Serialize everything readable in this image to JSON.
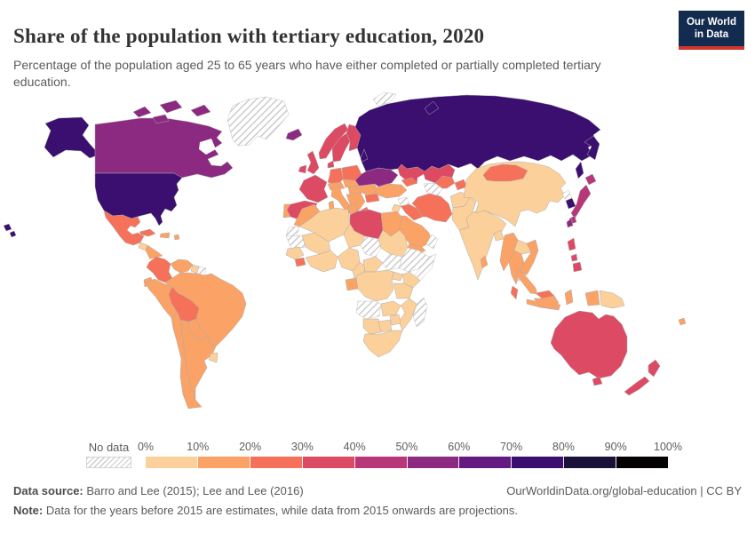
{
  "page": {
    "title": "Share of the population with tertiary education, 2020",
    "subtitle": "Percentage of the population aged 25 to 65 years who have either completed or partially completed tertiary education."
  },
  "logo": {
    "line1": "Our World",
    "line2": "in Data",
    "bg_color": "#122B4E",
    "accent_color": "#D0342C"
  },
  "legend": {
    "no_data_label": "No data",
    "tick_labels": [
      "0%",
      "10%",
      "20%",
      "30%",
      "40%",
      "50%",
      "60%",
      "70%",
      "80%",
      "90%",
      "100%"
    ]
  },
  "footer": {
    "source_label": "Data source:",
    "source_value": " Barro and Lee (2015); Lee and Lee (2016)",
    "attribution": "OurWorldinData.org/global-education | CC BY",
    "note_label": "Note:",
    "note_value": " Data for the years before 2015 are estimates, while data from 2015 onwards are projections."
  },
  "chart_data": {
    "type": "heatmap",
    "subtype": "world-choropleth",
    "title": "Share of the population with tertiary education",
    "year": "2020",
    "unit": "% of population aged 25 to 65",
    "legend_position": "bottom",
    "legend_bins": [
      "0-10%",
      "10-20%",
      "20-30%",
      "30-40%",
      "40-50%",
      "50-60%",
      "60-70%",
      "70-80%",
      "80-90%",
      "90-100%"
    ],
    "bin_colors": {
      "0-10%": "#FCD09A",
      "10-20%": "#FBA266",
      "20-30%": "#F5715A",
      "30-40%": "#DD4A63",
      "40-50%": "#B73779",
      "50-60%": "#8C2981",
      "60-70%": "#641A80",
      "70-80%": "#3B0F70",
      "80-90%": "#1A1138",
      "90-100%": "#050103"
    },
    "no_data_style": "hatched",
    "regions": {
      "united-states": "70-80%",
      "canada": "50-60%",
      "greenland": "No data",
      "mexico": "20-30%",
      "guatemala": "0-10%",
      "central-america": "10-20%",
      "cuba": "20-30%",
      "hispaniola": "10-20%",
      "puerto-rico": "10-20%",
      "colombia": "20-30%",
      "venezuela": "10-20%",
      "guyana": "0-10%",
      "suriname": "No data",
      "brazil": "10-20%",
      "ecuador": "10-20%",
      "peru": "10-20%",
      "bolivia": "20-30%",
      "paraguay": "10-20%",
      "chile": "10-20%",
      "argentina": "10-20%",
      "uruguay": "0-10%",
      "iceland": "50-60%",
      "united-kingdom": "30-40%",
      "ireland": "30-40%",
      "norway": "30-40%",
      "sweden": "30-40%",
      "finland": "30-40%",
      "denmark": "30-40%",
      "baltic-states": "70-80%",
      "belarus": "No data",
      "poland": "20-30%",
      "germany": "20-30%",
      "france": "30-40%",
      "spain": "30-40%",
      "portugal": "10-20%",
      "italy": "10-20%",
      "switzerland-austria": "10-20%",
      "czechia-slovakia": "10-20%",
      "hungary": "10-20%",
      "balkans": "10-20%",
      "greece": "20-30%",
      "romania": "10-20%",
      "bulgaria": "20-30%",
      "ukraine": "50-60%",
      "russia": "70-80%",
      "kazakhstan": "30-40%",
      "turkmenistan": "No data",
      "uzbekistan": "20-30%",
      "kyrgyzstan-tajikistan": "20-30%",
      "caucasus": "20-30%",
      "turkey": "10-20%",
      "syria": "No data",
      "jordan-israel": "0-10%",
      "iraq": "20-30%",
      "iran": "20-30%",
      "saudi-arabia": "10-20%",
      "yemen": "10-20%",
      "oman": "No data",
      "afghanistan": "0-10%",
      "pakistan": "0-10%",
      "india": "0-10%",
      "bangladesh": "0-10%",
      "sri-lanka": "10-20%",
      "china": "0-10%",
      "mongolia": "20-30%",
      "north-korea": "No data",
      "south-korea": "70-80%",
      "japan": "40-50%",
      "taiwan": "50-60%",
      "myanmar": "10-20%",
      "thailand": "10-20%",
      "laos": "0-10%",
      "vietnam": "10-20%",
      "cambodia": "0-10%",
      "malaysia": "20-30%",
      "indonesia": "10-20%",
      "philippines": "30-40%",
      "papua-new-guinea": "0-10%",
      "fiji": "10-20%",
      "australia": "30-40%",
      "new-zealand": "30-40%",
      "morocco": "10-20%",
      "western-sahara": "No data",
      "algeria": "0-10%",
      "tunisia": "10-20%",
      "libya": "30-40%",
      "egypt": "10-20%",
      "sudan": "0-10%",
      "chad": "No data",
      "niger": "0-10%",
      "mali": "0-10%",
      "mauritania": "No data",
      "senegal-guinea": "0-10%",
      "liberia-sierra-leone": "20-30%",
      "ivory-coast-ghana": "0-10%",
      "nigeria": "0-10%",
      "cameroon": "0-10%",
      "central-african-republic": "0-10%",
      "south-sudan": "No data",
      "ethiopia": "No data",
      "somalia": "No data",
      "kenya": "0-10%",
      "uganda": "0-10%",
      "gabon-congo": "10-20%",
      "dr-congo": "0-10%",
      "tanzania": "0-10%",
      "angola": "No data",
      "zambia": "0-10%",
      "zimbabwe": "0-10%",
      "mozambique": "0-10%",
      "namibia": "0-10%",
      "botswana": "0-10%",
      "south-africa": "0-10%",
      "madagascar": "No data",
      "svalbard": "No data"
    }
  }
}
